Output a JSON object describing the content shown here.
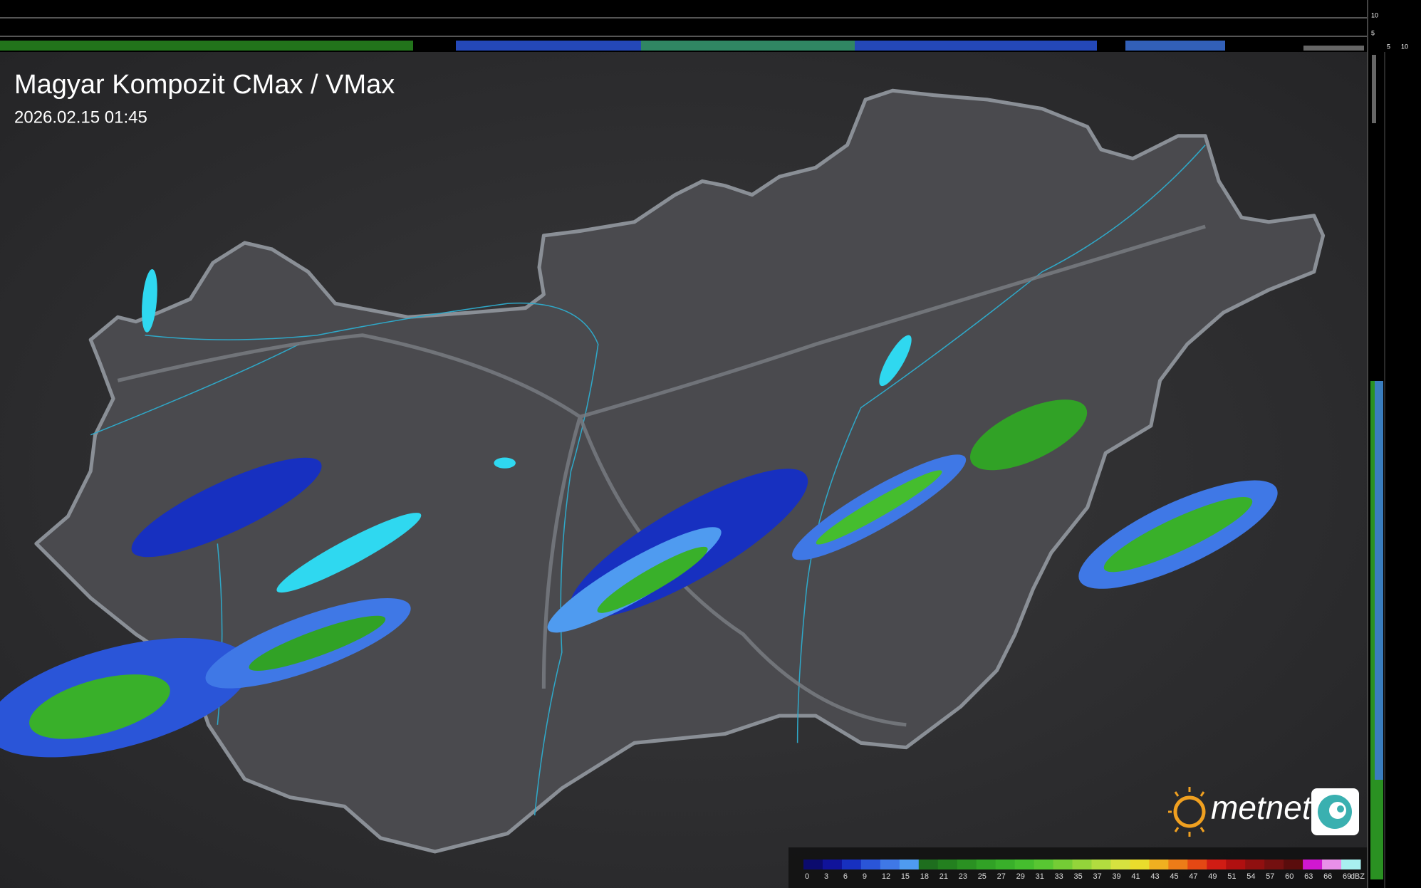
{
  "header": {
    "title": "Magyar Kompozit CMax / VMax",
    "timestamp": "2026.02.15 01:45"
  },
  "legend": {
    "labels": [
      "0",
      "3",
      "6",
      "9",
      "12",
      "15",
      "18",
      "21",
      "23",
      "25",
      "27",
      "29",
      "31",
      "33",
      "35",
      "37",
      "39",
      "41",
      "43",
      "45",
      "47",
      "49",
      "51",
      "54",
      "57",
      "60",
      "63",
      "66",
      "69"
    ],
    "unit": "dBZ",
    "colors": [
      "#0b0b6e",
      "#10139a",
      "#1730c0",
      "#2a55d8",
      "#3f78e6",
      "#4f9bf0",
      "#1e6e1e",
      "#23801f",
      "#2a9122",
      "#31a226",
      "#39b02a",
      "#45bd2e",
      "#58c632",
      "#74cc35",
      "#93d43a",
      "#b2dc3f",
      "#d6e23f",
      "#eadc2c",
      "#f0b020",
      "#ec7c18",
      "#e44814",
      "#d01c14",
      "#b01010",
      "#901010",
      "#741010",
      "#5a0c0c",
      "#d018d0",
      "#e890e8",
      "#a8f0f0"
    ]
  },
  "logo": {
    "text": "metnet"
  },
  "side_scale": {
    "vertical_ticks": [
      "10",
      "5"
    ],
    "horizontal_ticks": [
      "5",
      "10"
    ]
  }
}
